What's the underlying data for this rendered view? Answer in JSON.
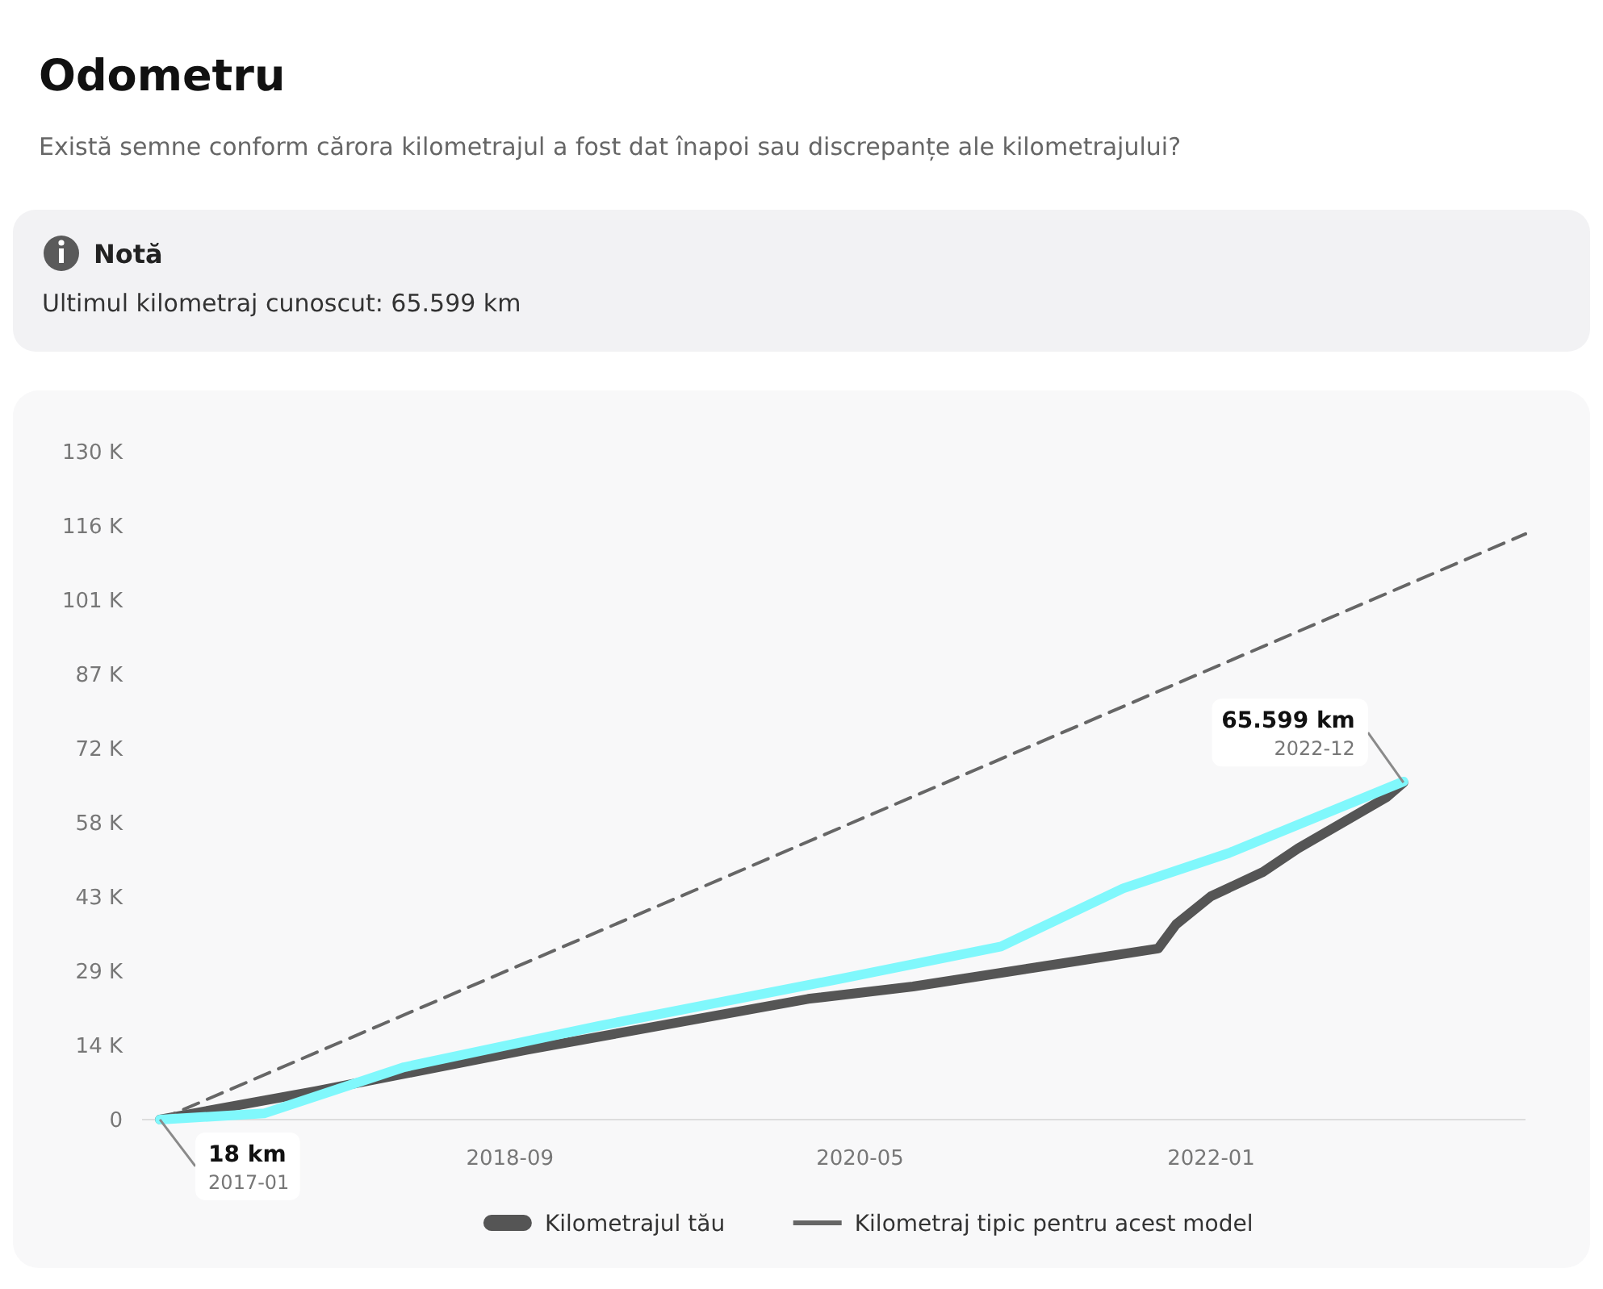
{
  "chart_data": {
    "type": "line",
    "title": "Odometru",
    "subtitle": "Există semne conform cărora kilometrajul a fost dat înapoi sau discrepanțe ale kilometrajului?",
    "annotations": [
      "Notă",
      "Ultimul kilometraj cunoscut: 65.599 km",
      {
        "text": "18 km",
        "x": "2017-01",
        "y": 18
      },
      {
        "text": "2017-01",
        "x": "2017-01",
        "y": 18
      },
      {
        "text": "65.599 km",
        "x": "2022-12",
        "y": 65599
      },
      {
        "text": "2022-12",
        "x": "2022-12",
        "y": 65599
      }
    ],
    "series": [
      {
        "name": "Kilometrajul tău",
        "color": "#555555",
        "x": [
          "2017-01",
          "2017-10",
          "2018-10",
          "2019-09",
          "2020-02",
          "2020-08",
          "2021-03",
          "2021-10",
          "2021-11",
          "2022-01",
          "2022-04",
          "2022-06",
          "2022-11",
          "2022-12"
        ],
        "values": [
          18,
          5600,
          13600,
          20400,
          23500,
          25900,
          29600,
          33300,
          38000,
          43500,
          48200,
          52800,
          62700,
          65599
        ]
      },
      {
        "name": "Kilometraj tipic pentru acest model",
        "color": "#666666",
        "line_style": "dashed",
        "x": [
          "2017-01",
          "2023-07"
        ],
        "values": [
          0,
          114000
        ]
      },
      {
        "color": "#80f8fc",
        "x": [
          "2017-01",
          "2017-07",
          "2018-03",
          "2019-02",
          "2020-04",
          "2021-01",
          "2021-08",
          "2022-02",
          "2022-12"
        ],
        "values": [
          0,
          1200,
          10200,
          18200,
          27500,
          33700,
          45000,
          51900,
          65800
        ]
      }
    ],
    "xlim": [
      "2016-12",
      "2023-07"
    ],
    "xticks": [
      "2018-09",
      "2020-05",
      "2022-01"
    ],
    "ylim": [
      0,
      130000
    ],
    "yticks": [
      0,
      {
        "value": 14444,
        "label": "14 K"
      },
      {
        "value": 28889,
        "label": "29 K"
      },
      {
        "value": 43333,
        "label": "43 K"
      },
      {
        "value": 57778,
        "label": "58 K"
      },
      {
        "value": 72222,
        "label": "72 K"
      },
      {
        "value": 86667,
        "label": "87 K"
      },
      {
        "value": 101111,
        "label": "101 K"
      },
      {
        "value": 115556,
        "label": "116 K"
      },
      {
        "value": 130000,
        "label": "130 K"
      }
    ],
    "legend": "bottom"
  }
}
